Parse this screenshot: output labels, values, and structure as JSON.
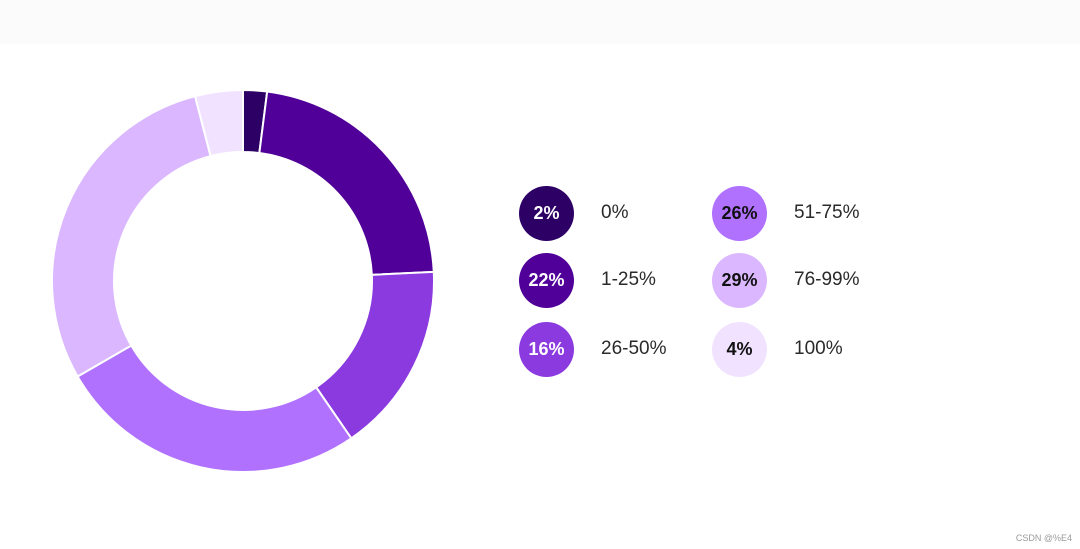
{
  "chart_data": {
    "type": "pie",
    "variant": "donut",
    "title": "",
    "legend_position": "right",
    "slices": [
      {
        "label": "0%",
        "value": 2,
        "display": "2%",
        "color": "#2d0066",
        "text_color": "#ffffff"
      },
      {
        "label": "1-25%",
        "value": 22,
        "display": "22%",
        "color": "#500099",
        "text_color": "#ffffff"
      },
      {
        "label": "26-50%",
        "value": 16,
        "display": "16%",
        "color": "#8a3adf",
        "text_color": "#ffffff"
      },
      {
        "label": "51-75%",
        "value": 26,
        "display": "26%",
        "color": "#b071ff",
        "text_color": "#111111"
      },
      {
        "label": "76-99%",
        "value": 29,
        "display": "29%",
        "color": "#dab7ff",
        "text_color": "#111111"
      },
      {
        "label": "100%",
        "value": 4,
        "display": "4%",
        "color": "#f1e3ff",
        "text_color": "#111111"
      }
    ]
  },
  "watermark": "CSDN @%E4"
}
